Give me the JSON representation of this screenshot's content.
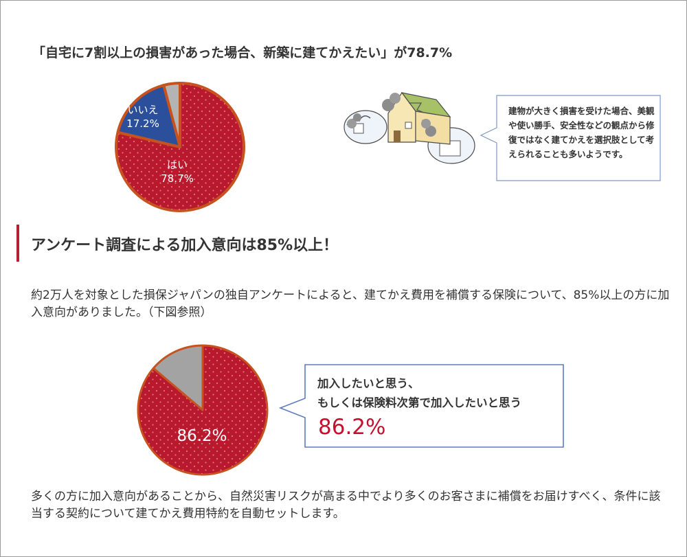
{
  "section1": {
    "title": "「自宅に7割以上の損害があった場合、新築に建てかえたい」が78.7%",
    "note": "建物が大きく損害を受けた場合、美観や使い勝手、安全性などの観点から修復ではなく建てかえを選択肢として考えられることも多いようです。"
  },
  "section2": {
    "heading": "アンケート調査による加入意向は85%以上！",
    "intro": "約2万人を対象とした損保ジャパンの独自アンケートによると、建てかえ費用を補償する保険について、85%以上の方に加入意向がありました。（下図参照）",
    "callout_line1": "加入したいと思う、",
    "callout_line2": "もしくは保険料次第で加入したいと思う",
    "callout_value": "86.2%",
    "closing": "多くの方に加入意向があることから、自然災害リスクが高まる中でより多くのお客さまに補償をお届けすべく、条件に該当する契約について建てかえ費用特約を自動セットします。"
  },
  "colors": {
    "red": "#b8192d",
    "red_text": "#c8102e",
    "blue": "#2c4f9c",
    "gray": "#b4b4b4",
    "border": "#c6531f",
    "accent_bar": "#b22234"
  },
  "chart_data": [
    {
      "type": "pie",
      "slices": [
        {
          "label": "はい",
          "value": 78.7,
          "display": "78.7%",
          "color": "#b8192d"
        },
        {
          "label": "いいえ",
          "value": 17.2,
          "display": "17.2%",
          "color": "#2c4f9c"
        },
        {
          "label": "",
          "value": 4.1,
          "display": "",
          "color": "#b4b4b4"
        }
      ]
    },
    {
      "type": "pie",
      "slices": [
        {
          "label": "",
          "value": 86.2,
          "display": "86.2%",
          "color": "#b8192d"
        },
        {
          "label": "",
          "value": 13.8,
          "display": "",
          "color": "#a3a3a3"
        }
      ]
    }
  ]
}
